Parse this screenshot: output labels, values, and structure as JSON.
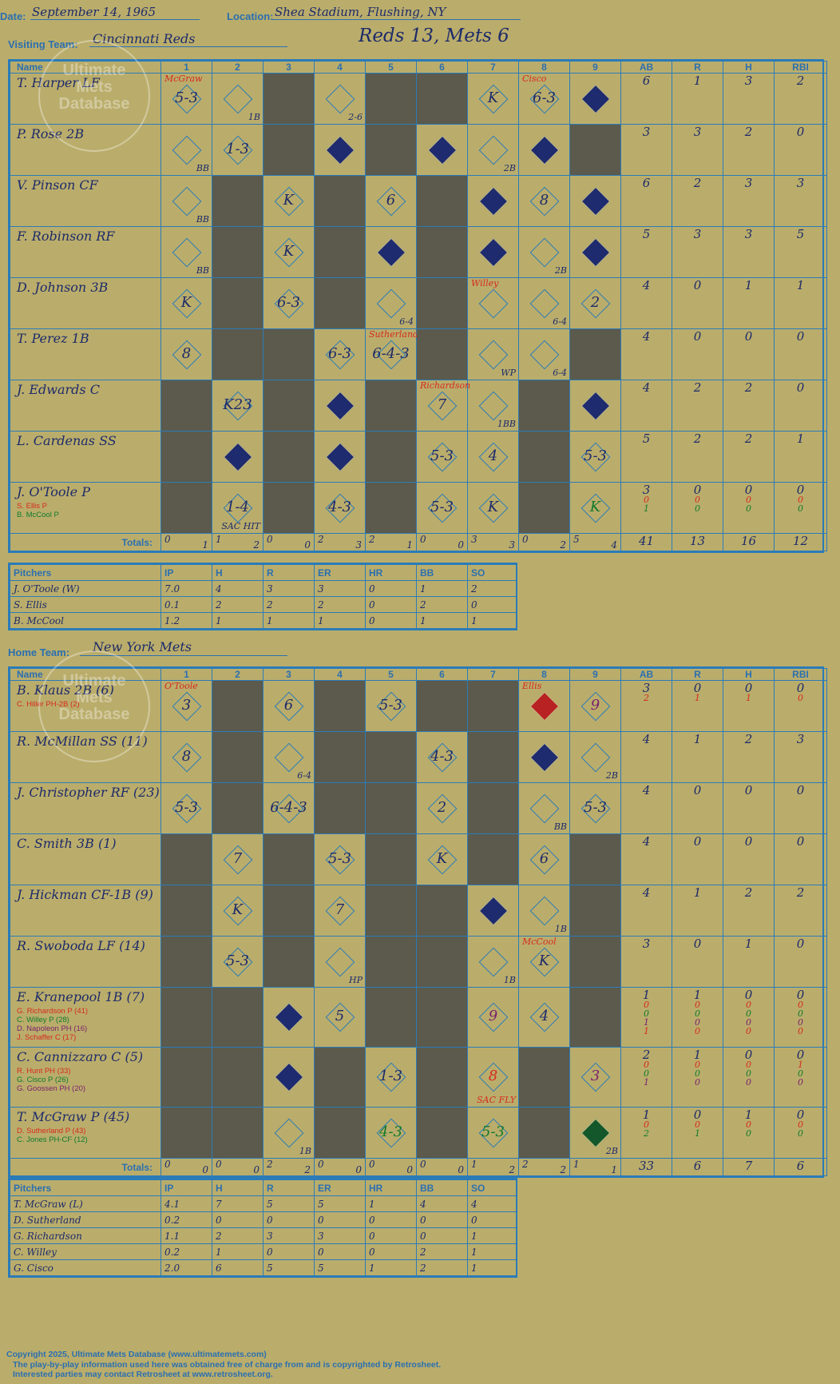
{
  "header": {
    "date_label": "Date:",
    "date": "September 14, 1965",
    "location_label": "Location:",
    "location": "Shea Stadium, Flushing, NY",
    "visiting_label": "Visiting Team:",
    "visiting_team": "Cincinnati Reds",
    "score_title": "Reds 13, Mets 6",
    "home_label": "Home Team:",
    "home_team": "New York Mets"
  },
  "watermark": {
    "line1": "Ultimate",
    "line2": "Mets",
    "line3": "Database"
  },
  "columns": {
    "name": "Name",
    "innings": [
      "1",
      "2",
      "3",
      "4",
      "5",
      "6",
      "7",
      "8",
      "9"
    ],
    "stats": [
      "AB",
      "R",
      "H",
      "RBI"
    ],
    "totals": "Totals:",
    "r": "R",
    "h": "H"
  },
  "visitors": {
    "rows": [
      {
        "name": "T. Harper LF",
        "subs": [],
        "stats": [
          "6",
          "1",
          "3",
          "2"
        ],
        "substats": [],
        "cells": [
          {
            "t": "5-3",
            "note": "McGraw"
          },
          {
            "t": "",
            "corner": "1B"
          },
          {
            "dark": true
          },
          {
            "t": "",
            "corner": "2-6"
          },
          {
            "dark": true
          },
          {
            "dark": true
          },
          {
            "t": "K"
          },
          {
            "t": "6-3",
            "note": "Cisco"
          },
          {
            "scored": true,
            "t": ""
          }
        ]
      },
      {
        "name": "P. Rose 2B",
        "subs": [],
        "stats": [
          "3",
          "3",
          "2",
          "0"
        ],
        "substats": [],
        "cells": [
          {
            "t": "",
            "corner": "BB"
          },
          {
            "t": "1-3"
          },
          {
            "dark": true
          },
          {
            "scored": true,
            "t": ""
          },
          {
            "dark": true
          },
          {
            "scored": true,
            "t": ""
          },
          {
            "t": "",
            "corner": "2B"
          },
          {
            "scored": true,
            "t": ""
          },
          {
            "dark": true
          }
        ]
      },
      {
        "name": "V. Pinson CF",
        "subs": [],
        "stats": [
          "6",
          "2",
          "3",
          "3"
        ],
        "substats": [],
        "cells": [
          {
            "t": "",
            "corner": "BB"
          },
          {
            "dark": true
          },
          {
            "t": "K"
          },
          {
            "dark": true
          },
          {
            "t": "6"
          },
          {
            "dark": true
          },
          {
            "scored": true,
            "t": ""
          },
          {
            "t": "8"
          },
          {
            "scored": true,
            "t": ""
          }
        ]
      },
      {
        "name": "F. Robinson RF",
        "subs": [],
        "stats": [
          "5",
          "3",
          "3",
          "5"
        ],
        "substats": [],
        "cells": [
          {
            "t": "",
            "corner": "BB"
          },
          {
            "dark": true
          },
          {
            "t": "K"
          },
          {
            "dark": true
          },
          {
            "scored": true,
            "t": ""
          },
          {
            "dark": true
          },
          {
            "scored": true,
            "t": ""
          },
          {
            "t": "",
            "corner": "2B"
          },
          {
            "scored": true,
            "t": ""
          }
        ]
      },
      {
        "name": "D. Johnson 3B",
        "subs": [],
        "stats": [
          "4",
          "0",
          "1",
          "1"
        ],
        "substats": [],
        "cells": [
          {
            "t": "K"
          },
          {
            "dark": true
          },
          {
            "t": "6-3"
          },
          {
            "dark": true
          },
          {
            "t": "",
            "corner": "6-4"
          },
          {
            "dark": true
          },
          {
            "t": "",
            "note": "Willey"
          },
          {
            "t": "",
            "corner": "6-4"
          },
          {
            "t": "2"
          }
        ]
      },
      {
        "name": "T. Perez 1B",
        "subs": [],
        "stats": [
          "4",
          "0",
          "0",
          "0"
        ],
        "substats": [],
        "cells": [
          {
            "t": "8"
          },
          {
            "dark": true
          },
          {
            "dark": true
          },
          {
            "t": "6-3"
          },
          {
            "t": "6-4-3",
            "note": "Sutherland"
          },
          {
            "dark": true
          },
          {
            "t": "",
            "corner": "WP"
          },
          {
            "t": "",
            "corner": "6-4"
          },
          {
            "dark": true
          }
        ]
      },
      {
        "name": "J. Edwards C",
        "subs": [],
        "stats": [
          "4",
          "2",
          "2",
          "0"
        ],
        "substats": [],
        "cells": [
          {
            "dark": true
          },
          {
            "t": "K23"
          },
          {
            "dark": true
          },
          {
            "scored": true,
            "t": ""
          },
          {
            "dark": true
          },
          {
            "t": "7",
            "note": "Richardson"
          },
          {
            "t": "",
            "corner": "1BB"
          },
          {
            "dark": true
          },
          {
            "scored": true,
            "t": ""
          }
        ]
      },
      {
        "name": "L. Cardenas SS",
        "subs": [],
        "stats": [
          "5",
          "2",
          "2",
          "1"
        ],
        "substats": [],
        "cells": [
          {
            "dark": true
          },
          {
            "scored": true,
            "t": ""
          },
          {
            "dark": true
          },
          {
            "scored": true,
            "t": ""
          },
          {
            "dark": true
          },
          {
            "t": "5-3"
          },
          {
            "t": "4"
          },
          {
            "dark": true
          },
          {
            "t": "5-3"
          }
        ]
      },
      {
        "name": "J. O'Toole P",
        "subs": [
          {
            "n": "S. Ellis P",
            "c": "red"
          },
          {
            "n": "B. McCool P",
            "c": "grn"
          }
        ],
        "stats": [
          "3",
          "0",
          "0",
          "0"
        ],
        "substats": [
          [
            "0",
            "0",
            "0",
            "0"
          ],
          [
            "1",
            "0",
            "0",
            "0"
          ]
        ],
        "cells": [
          {
            "dark": true
          },
          {
            "t": "1-4",
            "corner": "SAC HIT"
          },
          {
            "dark": true
          },
          {
            "t": "4-3"
          },
          {
            "dark": true
          },
          {
            "t": "5-3"
          },
          {
            "t": "K"
          },
          {
            "dark": true
          },
          {
            "t": "K",
            "color": "grn"
          }
        ]
      }
    ],
    "totals": [
      [
        "0",
        "1"
      ],
      [
        "1",
        "2"
      ],
      [
        "0",
        "0"
      ],
      [
        "2",
        "3"
      ],
      [
        "2",
        "1"
      ],
      [
        "0",
        "0"
      ],
      [
        "3",
        "3"
      ],
      [
        "0",
        "2"
      ],
      [
        "5",
        "4"
      ]
    ],
    "total_stats": [
      "41",
      "13",
      "16",
      "12"
    ]
  },
  "visitor_pitchers": {
    "headers": [
      "Pitchers",
      "IP",
      "H",
      "R",
      "ER",
      "HR",
      "BB",
      "SO"
    ],
    "rows": [
      [
        "J. O'Toole (W)",
        "7.0",
        "4",
        "3",
        "3",
        "0",
        "1",
        "2"
      ],
      [
        "S. Ellis",
        "0.1",
        "2",
        "2",
        "2",
        "0",
        "2",
        "0"
      ],
      [
        "B. McCool",
        "1.2",
        "1",
        "1",
        "1",
        "0",
        "1",
        "1"
      ]
    ]
  },
  "home": {
    "rows": [
      {
        "name": "B. Klaus 2B (6)",
        "subs": [
          {
            "n": "C. Hiller PH-2B (2)",
            "c": "red"
          }
        ],
        "stats": [
          "3",
          "0",
          "0",
          "0"
        ],
        "substats": [
          [
            "2",
            "1",
            "1",
            "0"
          ]
        ],
        "cells": [
          {
            "t": "3",
            "note": "O'Toole"
          },
          {
            "dark": true
          },
          {
            "t": "6"
          },
          {
            "dark": true
          },
          {
            "t": "5-3"
          },
          {
            "dark": true
          },
          {
            "dark": true
          },
          {
            "red": true,
            "t": "",
            "note": "Ellis"
          },
          {
            "t": "9",
            "color": "pur"
          }
        ]
      },
      {
        "name": "R. McMillan SS (11)",
        "subs": [],
        "stats": [
          "4",
          "1",
          "2",
          "3"
        ],
        "substats": [],
        "cells": [
          {
            "t": "8"
          },
          {
            "dark": true
          },
          {
            "t": "",
            "corner": "6-4"
          },
          {
            "dark": true
          },
          {
            "dark": true
          },
          {
            "t": "4-3"
          },
          {
            "dark": true
          },
          {
            "scored": true,
            "t": ""
          },
          {
            "t": "",
            "corner": "2B"
          }
        ]
      },
      {
        "name": "J. Christopher RF (23)",
        "subs": [],
        "stats": [
          "4",
          "0",
          "0",
          "0"
        ],
        "substats": [],
        "cells": [
          {
            "t": "5-3"
          },
          {
            "dark": true
          },
          {
            "t": "6-4-3"
          },
          {
            "dark": true
          },
          {
            "dark": true
          },
          {
            "t": "2"
          },
          {
            "dark": true
          },
          {
            "t": "",
            "corner": "BB"
          },
          {
            "t": "5-3"
          }
        ]
      },
      {
        "name": "C. Smith 3B (1)",
        "subs": [],
        "stats": [
          "4",
          "0",
          "0",
          "0"
        ],
        "substats": [],
        "cells": [
          {
            "dark": true
          },
          {
            "t": "7"
          },
          {
            "dark": true
          },
          {
            "t": "5-3"
          },
          {
            "dark": true
          },
          {
            "t": "K"
          },
          {
            "dark": true
          },
          {
            "t": "6"
          },
          {
            "dark": true
          }
        ]
      },
      {
        "name": "J. Hickman CF-1B (9)",
        "subs": [],
        "stats": [
          "4",
          "1",
          "2",
          "2"
        ],
        "substats": [],
        "cells": [
          {
            "dark": true
          },
          {
            "t": "K"
          },
          {
            "dark": true
          },
          {
            "t": "7"
          },
          {
            "dark": true
          },
          {
            "dark": true
          },
          {
            "scored": true,
            "t": ""
          },
          {
            "t": "",
            "corner": "1B"
          },
          {
            "dark": true
          }
        ]
      },
      {
        "name": "R. Swoboda LF (14)",
        "subs": [],
        "stats": [
          "3",
          "0",
          "1",
          "0"
        ],
        "substats": [],
        "cells": [
          {
            "dark": true
          },
          {
            "t": "5-3"
          },
          {
            "dark": true
          },
          {
            "t": "",
            "corner": "HP"
          },
          {
            "dark": true
          },
          {
            "dark": true
          },
          {
            "t": "",
            "corner": "1B"
          },
          {
            "t": "K",
            "note": "McCool"
          },
          {
            "dark": true
          }
        ]
      },
      {
        "name": "E. Kranepool 1B (7)",
        "subs": [
          {
            "n": "G. Richardson P (41)",
            "c": "red"
          },
          {
            "n": "C. Willey P (28)",
            "c": "grn"
          },
          {
            "n": "D. Napoleon PH (16)",
            "c": "pur"
          },
          {
            "n": "J. Schaffer C (17)",
            "c": "red"
          }
        ],
        "stats": [
          "1",
          "1",
          "0",
          "0"
        ],
        "substats": [
          [
            "0",
            "0",
            "0",
            "0"
          ],
          [
            "0",
            "0",
            "0",
            "0"
          ],
          [
            "1",
            "0",
            "0",
            "0"
          ],
          [
            "1",
            "0",
            "0",
            "0"
          ]
        ],
        "cells": [
          {
            "dark": true
          },
          {
            "dark": true
          },
          {
            "scored": true,
            "t": ""
          },
          {
            "t": "5"
          },
          {
            "dark": true
          },
          {
            "dark": true
          },
          {
            "t": "9",
            "color": "pur"
          },
          {
            "t": "4"
          },
          {
            "dark": true
          }
        ]
      },
      {
        "name": "C. Cannizzaro C (5)",
        "subs": [
          {
            "n": "R. Hunt PH (33)",
            "c": "red"
          },
          {
            "n": "G. Cisco P (26)",
            "c": "grn"
          },
          {
            "n": "G. Goossen PH (20)",
            "c": "pur"
          }
        ],
        "stats": [
          "2",
          "1",
          "0",
          "0"
        ],
        "substats": [
          [
            "0",
            "0",
            "0",
            "1"
          ],
          [
            "0",
            "0",
            "0",
            "0"
          ],
          [
            "1",
            "0",
            "0",
            "0"
          ]
        ],
        "cells": [
          {
            "dark": true
          },
          {
            "dark": true
          },
          {
            "scored": true,
            "t": ""
          },
          {
            "dark": true
          },
          {
            "t": "1-3"
          },
          {
            "dark": true
          },
          {
            "t": "8",
            "color": "red",
            "corner": "SAC FLY"
          },
          {
            "dark": true
          },
          {
            "t": "3",
            "color": "pur"
          }
        ]
      },
      {
        "name": "T. McGraw P (45)",
        "subs": [
          {
            "n": "D. Sutherland P (43)",
            "c": "red"
          },
          {
            "n": "C. Jones PH-CF (12)",
            "c": "grn"
          }
        ],
        "stats": [
          "1",
          "0",
          "1",
          "0"
        ],
        "substats": [
          [
            "0",
            "0",
            "0",
            "0"
          ],
          [
            "2",
            "1",
            "0",
            "0"
          ]
        ],
        "cells": [
          {
            "dark": true
          },
          {
            "dark": true
          },
          {
            "t": "",
            "corner": "1B"
          },
          {
            "dark": true
          },
          {
            "t": "4-3",
            "color": "grn"
          },
          {
            "dark": true
          },
          {
            "t": "5-3",
            "color": "grn"
          },
          {
            "dark": true
          },
          {
            "green": true,
            "t": "",
            "corner": "2B"
          }
        ]
      }
    ],
    "totals": [
      [
        "0",
        "0"
      ],
      [
        "0",
        "0"
      ],
      [
        "2",
        "2"
      ],
      [
        "0",
        "0"
      ],
      [
        "0",
        "0"
      ],
      [
        "0",
        "0"
      ],
      [
        "1",
        "2"
      ],
      [
        "2",
        "2"
      ],
      [
        "1",
        "1"
      ]
    ],
    "total_stats": [
      "33",
      "6",
      "7",
      "6"
    ]
  },
  "home_pitchers": {
    "headers": [
      "Pitchers",
      "IP",
      "H",
      "R",
      "ER",
      "HR",
      "BB",
      "SO"
    ],
    "rows": [
      [
        "T. McGraw (L)",
        "4.1",
        "7",
        "5",
        "5",
        "1",
        "4",
        "4"
      ],
      [
        "D. Sutherland",
        "0.2",
        "0",
        "0",
        "0",
        "0",
        "0",
        "0"
      ],
      [
        "G. Richardson",
        "1.1",
        "2",
        "3",
        "3",
        "0",
        "0",
        "1"
      ],
      [
        "C. Willey",
        "0.2",
        "1",
        "0",
        "0",
        "0",
        "2",
        "1"
      ],
      [
        "G. Cisco",
        "2.0",
        "6",
        "5",
        "5",
        "1",
        "2",
        "1"
      ]
    ]
  },
  "footer": {
    "line1": "Copyright 2025, Ultimate Mets Database (www.ultimatemets.com)",
    "line2": "The play-by-play information used here was obtained free of charge from and is copyrighted by Retrosheet.",
    "line3": "Interested parties may contact Retrosheet at www.retrosheet.org."
  }
}
